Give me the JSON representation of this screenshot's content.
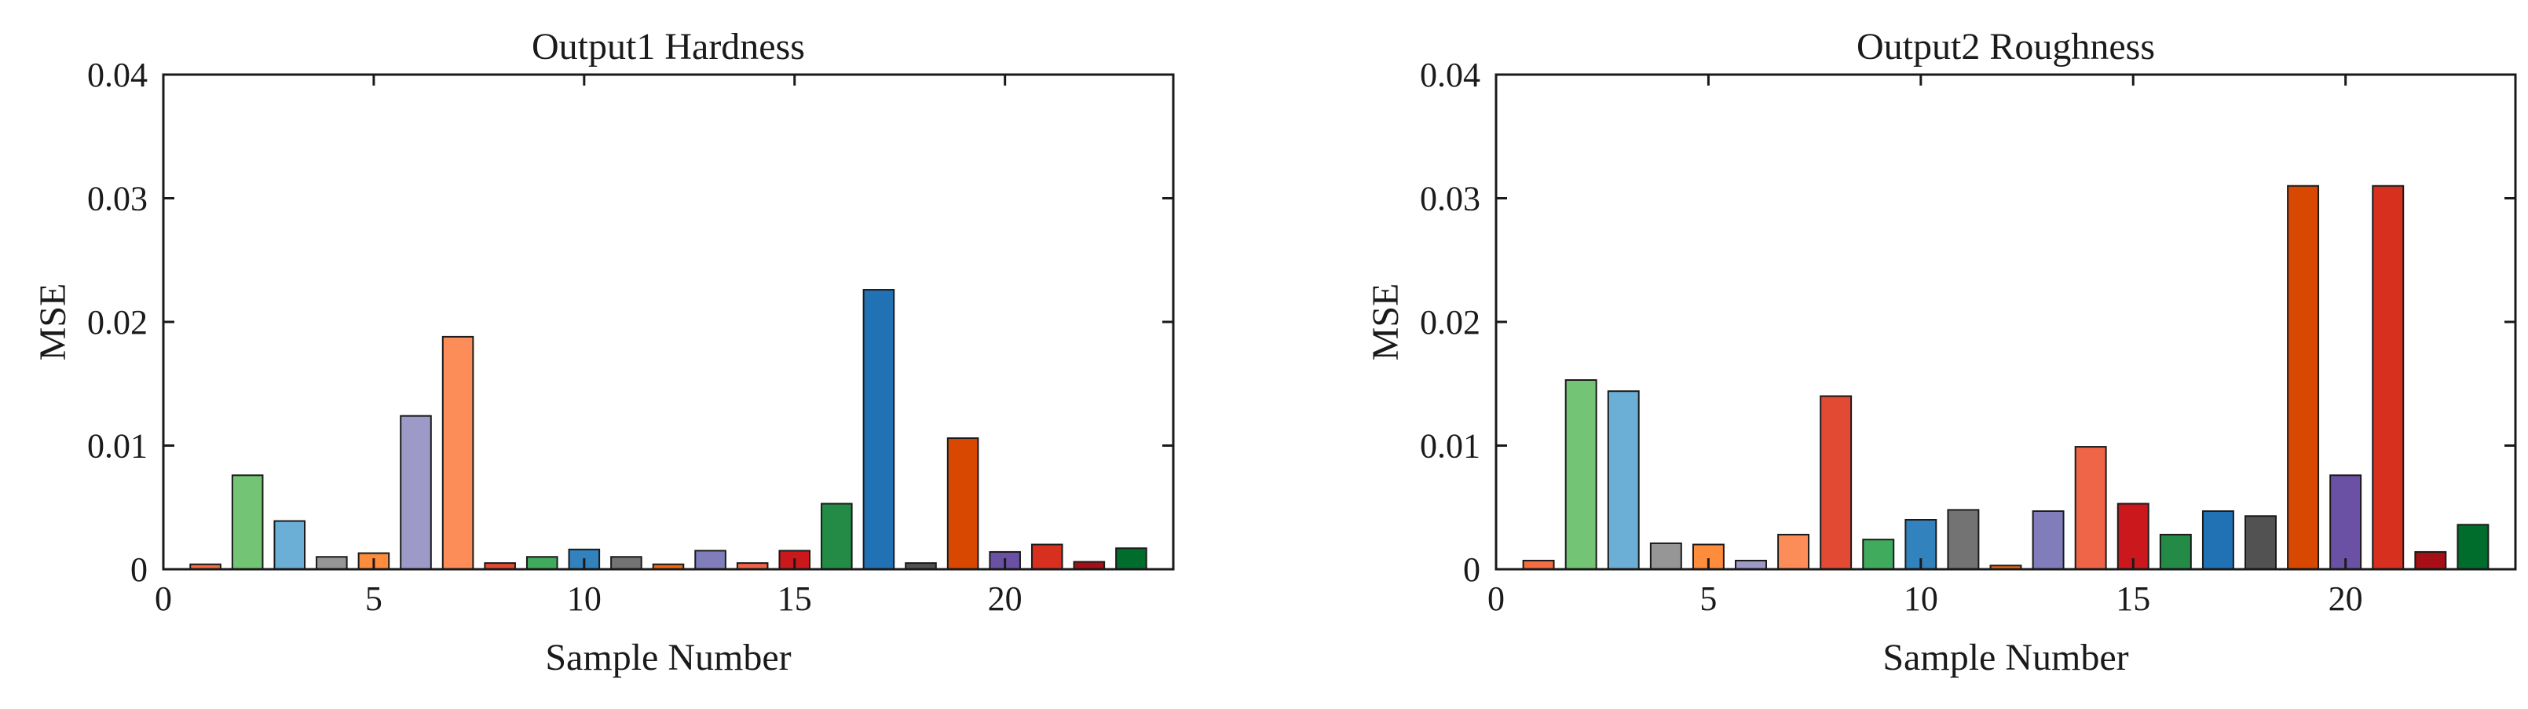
{
  "chart_data": [
    {
      "type": "bar",
      "title": "Output1 Hardness",
      "xlabel": "Sample Number",
      "ylabel": "MSE",
      "xlim": [
        0,
        24
      ],
      "ylim": [
        0,
        0.04
      ],
      "xticks": [
        "0",
        "5",
        "10",
        "15",
        "20"
      ],
      "yticks": [
        "0",
        "0.01",
        "0.02",
        "0.03",
        "0.04"
      ],
      "categories": [
        1,
        2,
        3,
        4,
        5,
        6,
        7,
        8,
        9,
        10,
        11,
        12,
        13,
        14,
        15,
        16,
        17,
        18,
        19,
        20,
        21,
        22,
        23
      ],
      "values": [
        0.0004,
        0.0076,
        0.0039,
        0.001,
        0.0013,
        0.0124,
        0.0188,
        0.0005,
        0.001,
        0.0016,
        0.001,
        0.0004,
        0.0015,
        0.0005,
        0.0015,
        0.0053,
        0.0226,
        0.0005,
        0.0106,
        0.0014,
        0.002,
        0.0006,
        0.0017
      ],
      "colors": [
        "#f46d43",
        "#74c476",
        "#6baed6",
        "#969696",
        "#fd8d3c",
        "#9e9ac8",
        "#fc8d59",
        "#e34a33",
        "#41ab5d",
        "#3182bd",
        "#737373",
        "#f16913",
        "#807dba",
        "#ef6548",
        "#cb181d",
        "#238b45",
        "#2171b5",
        "#525252",
        "#d94801",
        "#6a51a3",
        "#d7301f",
        "#a50f15",
        "#006d2c"
      ],
      "grid": false
    },
    {
      "type": "bar",
      "title": "Output2 Roughness",
      "xlabel": "Sample Number",
      "ylabel": "MSE",
      "xlim": [
        0,
        24
      ],
      "ylim": [
        0,
        0.04
      ],
      "xticks": [
        "0",
        "5",
        "10",
        "15",
        "20"
      ],
      "yticks": [
        "0",
        "0.01",
        "0.02",
        "0.03",
        "0.04"
      ],
      "categories": [
        1,
        2,
        3,
        4,
        5,
        6,
        7,
        8,
        9,
        10,
        11,
        12,
        13,
        14,
        15,
        16,
        17,
        18,
        19,
        20,
        21,
        22,
        23
      ],
      "values": [
        0.0007,
        0.0153,
        0.0144,
        0.0021,
        0.002,
        0.0007,
        0.0028,
        0.014,
        0.0024,
        0.004,
        0.0048,
        0.0003,
        0.0047,
        0.0099,
        0.0053,
        0.0028,
        0.0047,
        0.0043,
        0.031,
        0.0076,
        0.031,
        0.0014,
        0.0036
      ],
      "colors": [
        "#f46d43",
        "#74c476",
        "#6baed6",
        "#969696",
        "#fd8d3c",
        "#9e9ac8",
        "#fc8d59",
        "#e34a33",
        "#41ab5d",
        "#3182bd",
        "#737373",
        "#f16913",
        "#807dba",
        "#ef6548",
        "#cb181d",
        "#238b45",
        "#2171b5",
        "#525252",
        "#d94801",
        "#6a51a3",
        "#d7301f",
        "#a50f15",
        "#006d2c"
      ],
      "grid": false
    }
  ]
}
